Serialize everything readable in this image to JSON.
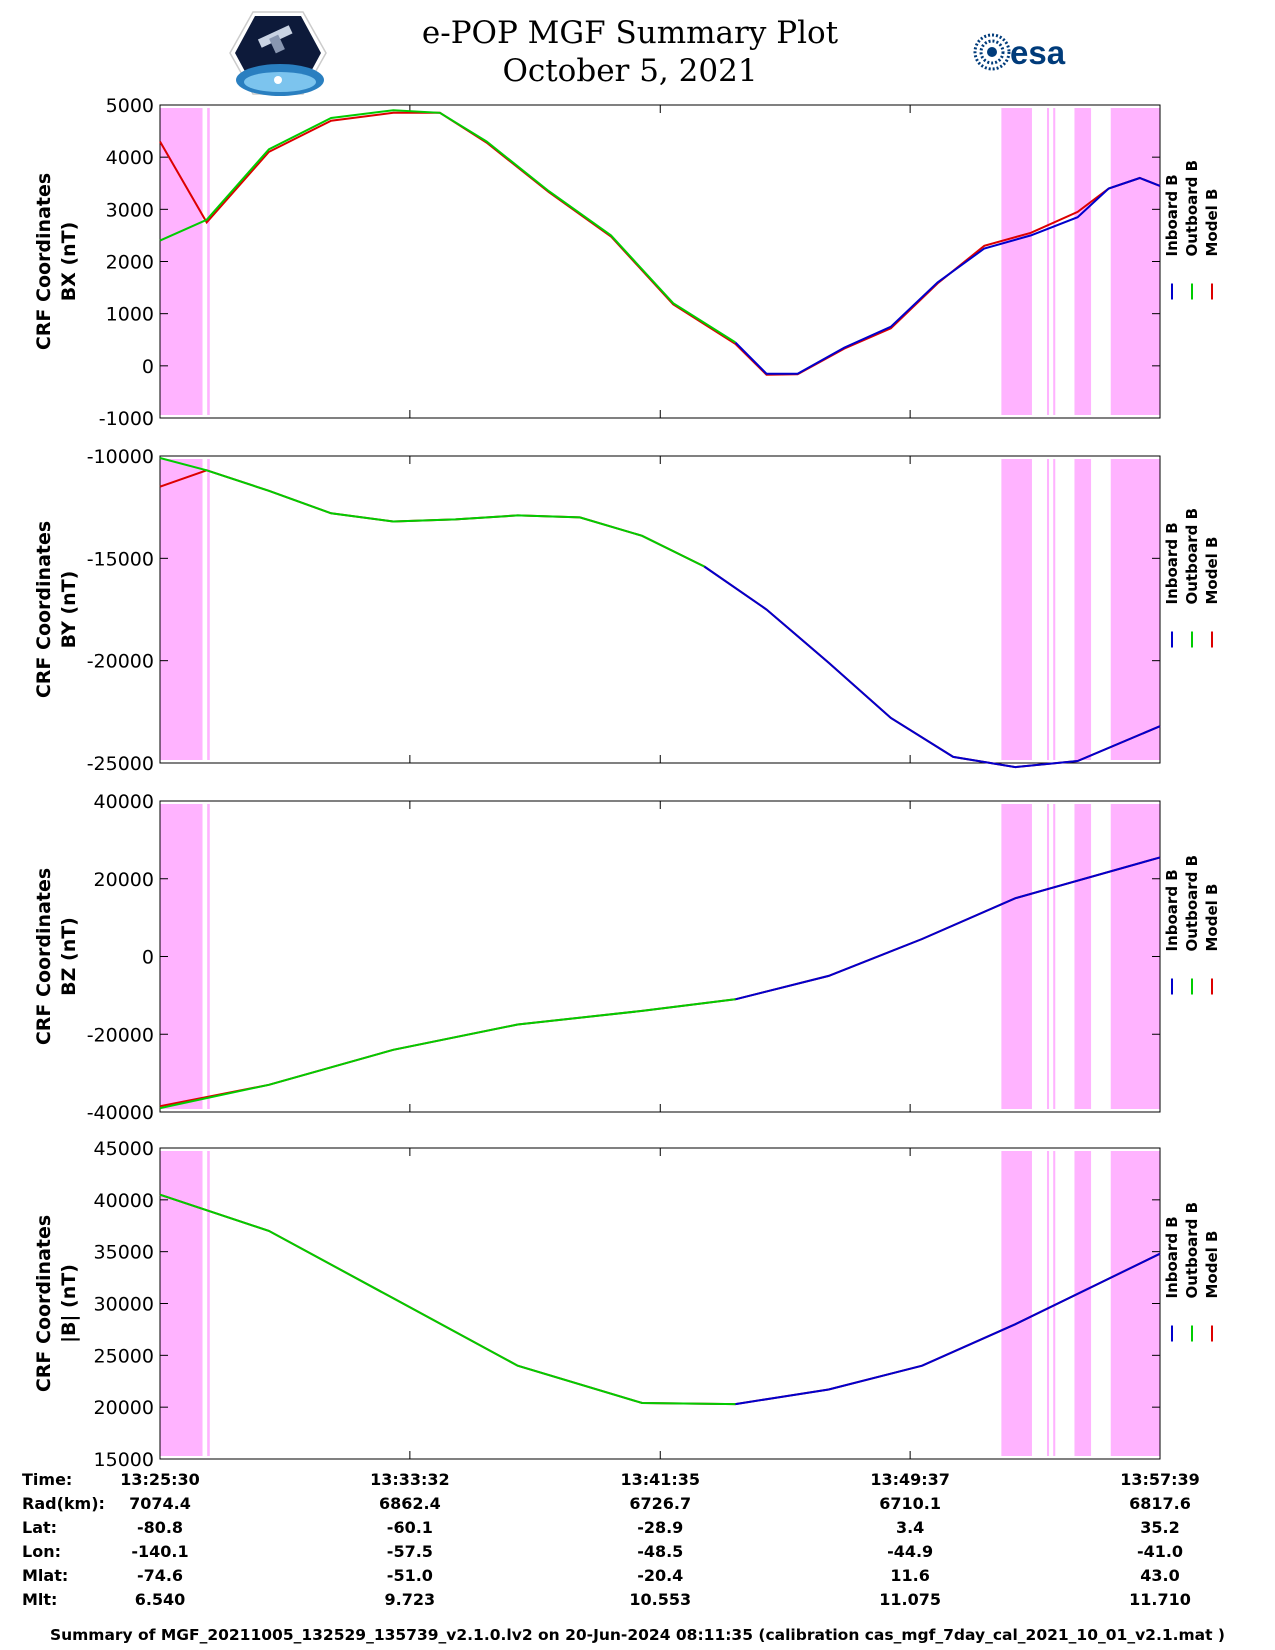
{
  "header": {
    "title_line1": "e-POP MGF Summary Plot",
    "title_line2": "October 5, 2021",
    "logo_left": "cassiope-logo",
    "logo_right_text": "esa"
  },
  "colors": {
    "inboard": "#0000cc",
    "outboard": "#00cc00",
    "model": "#dd0000",
    "shading": "#ffb3ff"
  },
  "legend": [
    "Inboard B",
    "Outboard B",
    "Model B"
  ],
  "shaded_intervals": [
    [
      "13:25:30",
      "13:26:52"
    ],
    [
      "13:27:01",
      "13:27:06"
    ],
    [
      "13:52:33",
      "13:53:32"
    ],
    [
      "13:54:01",
      "13:54:05"
    ],
    [
      "13:54:13",
      "13:54:17"
    ],
    [
      "13:54:54",
      "13:55:26"
    ],
    [
      "13:56:04",
      "13:57:39"
    ]
  ],
  "chart_data": [
    {
      "type": "line",
      "ylabel_line1": "CRF Coordinates",
      "ylabel_line2": "BX (nT)",
      "ylim": [
        -1000,
        5000
      ],
      "yticks": [
        5000,
        4000,
        3000,
        2000,
        1000,
        0,
        -1000
      ],
      "x": [
        "13:25:30",
        "13:27:00",
        "13:29:00",
        "13:31:00",
        "13:33:00",
        "13:34:30",
        "13:36:00",
        "13:38:00",
        "13:40:00",
        "13:42:00",
        "13:44:00",
        "13:45:00",
        "13:46:00",
        "13:47:30",
        "13:49:00",
        "13:50:30",
        "13:52:00",
        "13:53:30",
        "13:55:00",
        "13:56:00",
        "13:57:00",
        "13:57:39"
      ],
      "series": [
        {
          "name": "Inboard B",
          "segment": [
            "13:44:00",
            "13:57:39"
          ],
          "values": [
            2400,
            2800,
            4150,
            4750,
            4900,
            4850,
            4300,
            3350,
            2500,
            1200,
            450,
            -150,
            -150,
            350,
            750,
            1600,
            2250,
            2500,
            2850,
            3400,
            3600,
            3450
          ]
        },
        {
          "name": "Outboard B",
          "segment": [
            "13:25:30",
            "13:44:00"
          ],
          "values": [
            2400,
            2800,
            4150,
            4750,
            4900,
            4850,
            4300,
            3350,
            2500,
            1200,
            450,
            -150,
            -150,
            350,
            750,
            1600,
            2250,
            2500,
            2850,
            3400,
            3600,
            3450
          ]
        },
        {
          "name": "Model B",
          "values": [
            4300,
            2750,
            4100,
            4700,
            4850,
            4850,
            4280,
            3330,
            2480,
            1180,
            420,
            -170,
            -160,
            330,
            720,
            1580,
            2300,
            2550,
            2950,
            3400,
            3600,
            3450
          ]
        }
      ]
    },
    {
      "type": "line",
      "ylabel_line1": "CRF Coordinates",
      "ylabel_line2": "BY (nT)",
      "ylim": [
        -25000,
        -10000
      ],
      "yticks": [
        -10000,
        -15000,
        -20000,
        -25000
      ],
      "x": [
        "13:25:30",
        "13:27:00",
        "13:29:00",
        "13:31:00",
        "13:33:00",
        "13:35:00",
        "13:37:00",
        "13:39:00",
        "13:41:00",
        "13:43:00",
        "13:45:00",
        "13:47:00",
        "13:49:00",
        "13:51:00",
        "13:53:00",
        "13:55:00",
        "13:57:39"
      ],
      "series": [
        {
          "name": "Inboard B",
          "segment": [
            "13:43:00",
            "13:57:39"
          ],
          "values": [
            -10100,
            -10700,
            -11700,
            -12800,
            -13200,
            -13100,
            -12900,
            -13000,
            -13900,
            -15400,
            -17500,
            -20100,
            -22800,
            -24700,
            -25200,
            -24900,
            -23200
          ]
        },
        {
          "name": "Outboard B",
          "segment": [
            "13:25:30",
            "13:43:00"
          ],
          "values": [
            -10100,
            -10700,
            -11700,
            -12800,
            -13200,
            -13100,
            -12900,
            -13000,
            -13900,
            -15400,
            -17500,
            -20100,
            -22800,
            -24700,
            -25200,
            -24900,
            -23200
          ]
        },
        {
          "name": "Model B",
          "values": [
            -11500,
            -10700,
            -11700,
            -12800,
            -13200,
            -13100,
            -12900,
            -13000,
            -13900,
            -15400,
            -17500,
            -20100,
            -22800,
            -24700,
            -25200,
            -24900,
            -23200
          ]
        }
      ]
    },
    {
      "type": "line",
      "ylabel_line1": "CRF Coordinates",
      "ylabel_line2": "BZ (nT)",
      "ylim": [
        -40000,
        40000
      ],
      "yticks": [
        40000,
        20000,
        0,
        -20000,
        -40000
      ],
      "x": [
        "13:25:30",
        "13:29:00",
        "13:33:00",
        "13:37:00",
        "13:41:00",
        "13:44:00",
        "13:47:00",
        "13:50:00",
        "13:53:00",
        "13:57:39"
      ],
      "series": [
        {
          "name": "Inboard B",
          "segment": [
            "13:44:00",
            "13:57:39"
          ],
          "values": [
            -39000,
            -33000,
            -24000,
            -17500,
            -14000,
            -11000,
            -5000,
            4500,
            15000,
            25500
          ]
        },
        {
          "name": "Outboard B",
          "segment": [
            "13:25:30",
            "13:44:00"
          ],
          "values": [
            -39000,
            -33000,
            -24000,
            -17500,
            -14000,
            -11000,
            -5000,
            4500,
            15000,
            25500
          ]
        },
        {
          "name": "Model B",
          "values": [
            -38500,
            -33000,
            -24000,
            -17500,
            -14000,
            -11000,
            -5000,
            4500,
            15000,
            25500
          ]
        }
      ]
    },
    {
      "type": "line",
      "ylabel_line1": "CRF Coordinates",
      "ylabel_line2": "|B| (nT)",
      "ylim": [
        15000,
        45000
      ],
      "yticks": [
        45000,
        40000,
        35000,
        30000,
        25000,
        20000,
        15000
      ],
      "x": [
        "13:25:30",
        "13:29:00",
        "13:33:00",
        "13:37:00",
        "13:41:00",
        "13:44:00",
        "13:47:00",
        "13:50:00",
        "13:53:00",
        "13:57:39"
      ],
      "series": [
        {
          "name": "Inboard B",
          "segment": [
            "13:44:00",
            "13:57:39"
          ],
          "values": [
            40500,
            37000,
            30500,
            24000,
            20400,
            20300,
            21700,
            24000,
            28000,
            34800
          ]
        },
        {
          "name": "Outboard B",
          "segment": [
            "13:25:30",
            "13:44:00"
          ],
          "values": [
            40500,
            37000,
            30500,
            24000,
            20400,
            20300,
            21700,
            24000,
            28000,
            34800
          ]
        },
        {
          "name": "Model B",
          "values": [
            40500,
            37000,
            30500,
            24000,
            20400,
            20300,
            21700,
            24000,
            28000,
            34800
          ]
        }
      ]
    }
  ],
  "xticks": [
    "13:25:30",
    "13:33:32",
    "13:41:35",
    "13:49:37",
    "13:57:39"
  ],
  "stats": {
    "rows": [
      {
        "label": "Time:",
        "values": [
          "13:25:30",
          "13:33:32",
          "13:41:35",
          "13:49:37",
          "13:57:39"
        ]
      },
      {
        "label": "Rad(km):",
        "values": [
          "7074.4",
          "6862.4",
          "6726.7",
          "6710.1",
          "6817.6"
        ]
      },
      {
        "label": "Lat:",
        "values": [
          "-80.8",
          "-60.1",
          "-28.9",
          "3.4",
          "35.2"
        ]
      },
      {
        "label": "Lon:",
        "values": [
          "-140.1",
          "-57.5",
          "-48.5",
          "-44.9",
          "-41.0"
        ]
      },
      {
        "label": "Mlat:",
        "values": [
          "-74.6",
          "-51.0",
          "-20.4",
          "11.6",
          "43.0"
        ]
      },
      {
        "label": "Mlt:",
        "values": [
          "6.540",
          "9.723",
          "10.553",
          "11.075",
          "11.710"
        ]
      }
    ]
  },
  "footer": "Summary of MGF_20211005_132529_135739_v2.1.0.lv2 on 20-Jun-2024 08:11:35 (calibration cas_mgf_7day_cal_2021_10_01_v2.1.mat )"
}
